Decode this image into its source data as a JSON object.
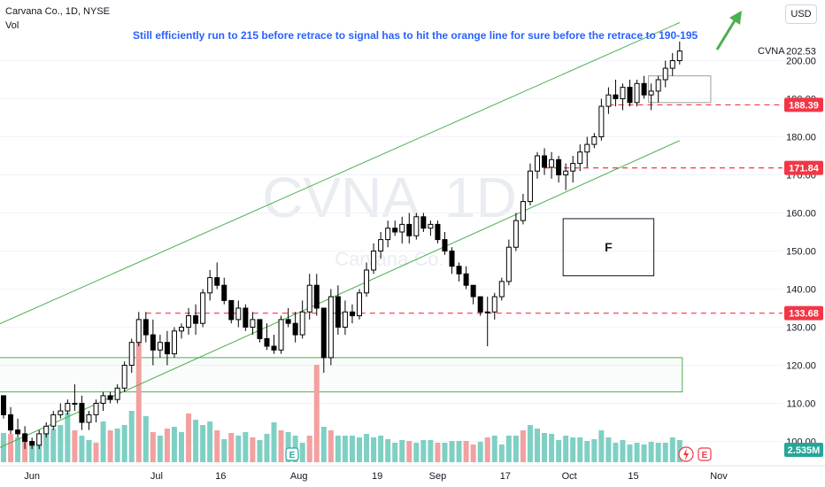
{
  "header": {
    "symbol_line": "Carvana Co., 1D, NYSE",
    "volume_label": "Vol",
    "currency": "USD"
  },
  "annotation": {
    "text": "Still efficiently run to 215 before retrace to signal has to hit the orange line for sure before the retrace to 190-195",
    "box_label": "F",
    "watermark_symbol": "CVNA",
    "watermark_interval": "1D",
    "watermark_name": "Carvana Co."
  },
  "colors": {
    "up": "#ffffff",
    "down": "#000000",
    "vol_up": "#7fd0c4",
    "vol_down": "#f3a0a0",
    "channel": "#4caf50",
    "level": "#f23645",
    "note": "#2962ff"
  },
  "chart_data": {
    "type": "candlestick",
    "y_axis": {
      "min": 95,
      "max": 215,
      "ticks": [
        100,
        110,
        120,
        130,
        140,
        150,
        160,
        170,
        180,
        190,
        200
      ]
    },
    "x_axis_labels": [
      "Jun",
      "Jul",
      "16",
      "Aug",
      "19",
      "Sep",
      "17",
      "Oct",
      "15",
      "Nov"
    ],
    "last_price": {
      "symbol": "CVNA",
      "value": 202.53
    },
    "levels": [
      188.39,
      171.84,
      133.68
    ],
    "volume_badge": "2.535M",
    "axis_event_icons": [
      "E",
      "lightning",
      "E"
    ],
    "candles": [
      [
        112,
        112,
        106,
        107
      ],
      [
        107,
        109,
        102,
        103
      ],
      [
        103,
        106,
        101,
        102
      ],
      [
        102,
        104,
        98,
        100
      ],
      [
        100,
        101,
        98,
        99
      ],
      [
        99,
        103,
        98,
        102
      ],
      [
        102,
        105,
        101,
        104
      ],
      [
        104,
        108,
        103,
        107
      ],
      [
        107,
        110,
        106,
        108
      ],
      [
        108,
        111,
        107,
        110
      ],
      [
        110,
        115,
        108,
        110
      ],
      [
        110,
        112,
        103,
        105
      ],
      [
        105,
        108,
        103,
        107
      ],
      [
        107,
        111,
        105,
        110
      ],
      [
        110,
        113,
        108,
        112
      ],
      [
        112,
        113,
        110,
        111
      ],
      [
        111,
        115,
        110,
        114
      ],
      [
        114,
        121,
        113,
        120
      ],
      [
        120,
        127,
        118,
        126
      ],
      [
        126,
        134,
        125,
        132
      ],
      [
        132,
        134,
        126,
        128
      ],
      [
        128,
        132,
        120,
        124
      ],
      [
        124,
        128,
        122,
        126
      ],
      [
        126,
        129,
        120,
        123
      ],
      [
        123,
        130,
        122,
        129
      ],
      [
        129,
        131,
        127,
        130
      ],
      [
        130,
        135,
        128,
        133
      ],
      [
        133,
        136,
        128,
        131
      ],
      [
        131,
        140,
        130,
        139
      ],
      [
        139,
        145,
        137,
        143
      ],
      [
        143,
        147,
        140,
        141
      ],
      [
        141,
        143,
        136,
        137
      ],
      [
        137,
        137,
        131,
        132
      ],
      [
        132,
        137,
        130,
        135
      ],
      [
        135,
        136,
        129,
        130
      ],
      [
        130,
        134,
        128,
        132
      ],
      [
        132,
        132,
        126,
        127
      ],
      [
        127,
        131,
        124,
        125
      ],
      [
        125,
        128,
        123,
        124
      ],
      [
        124,
        133,
        123,
        132
      ],
      [
        132,
        135,
        130,
        131
      ],
      [
        131,
        134,
        126,
        128
      ],
      [
        128,
        137,
        127,
        134
      ],
      [
        134,
        144,
        132,
        141
      ],
      [
        141,
        144,
        133,
        135
      ],
      [
        135,
        135,
        118,
        122
      ],
      [
        122,
        140,
        120,
        138
      ],
      [
        138,
        141,
        128,
        130
      ],
      [
        130,
        137,
        128,
        134
      ],
      [
        134,
        136,
        131,
        133
      ],
      [
        133,
        140,
        132,
        139
      ],
      [
        139,
        147,
        138,
        145
      ],
      [
        145,
        152,
        144,
        150
      ],
      [
        150,
        155,
        148,
        153
      ],
      [
        153,
        158,
        151,
        156
      ],
      [
        156,
        158,
        154,
        155
      ],
      [
        155,
        159,
        152,
        157
      ],
      [
        157,
        160,
        152,
        154
      ],
      [
        154,
        160,
        153,
        159
      ],
      [
        159,
        160,
        155,
        156
      ],
      [
        156,
        158,
        154,
        157
      ],
      [
        157,
        158,
        152,
        153
      ],
      [
        153,
        155,
        149,
        150
      ],
      [
        150,
        151,
        144,
        146
      ],
      [
        146,
        147,
        142,
        144
      ],
      [
        144,
        146,
        140,
        141
      ],
      [
        141,
        141,
        136,
        138
      ],
      [
        138,
        138,
        133,
        134
      ],
      [
        134,
        138,
        125,
        134
      ],
      [
        134,
        139,
        132,
        138
      ],
      [
        138,
        143,
        137,
        142
      ],
      [
        142,
        153,
        141,
        151
      ],
      [
        151,
        160,
        150,
        158
      ],
      [
        158,
        165,
        157,
        163
      ],
      [
        163,
        173,
        162,
        171
      ],
      [
        171,
        176,
        169,
        175
      ],
      [
        175,
        177,
        170,
        172
      ],
      [
        172,
        176,
        169,
        174
      ],
      [
        174,
        175,
        168,
        170
      ],
      [
        170,
        173,
        166,
        171
      ],
      [
        171,
        175,
        168,
        173
      ],
      [
        173,
        178,
        171,
        176
      ],
      [
        176,
        180,
        172,
        178
      ],
      [
        178,
        181,
        177,
        180
      ],
      [
        180,
        190,
        179,
        188
      ],
      [
        188,
        193,
        186,
        191
      ],
      [
        191,
        195,
        188,
        190
      ],
      [
        190,
        194,
        187,
        193
      ],
      [
        193,
        195,
        188,
        189
      ],
      [
        189,
        195,
        188,
        194
      ],
      [
        194,
        196,
        190,
        191
      ],
      [
        191,
        194,
        187,
        192
      ],
      [
        192,
        196,
        189,
        195
      ],
      [
        195,
        200,
        193,
        198
      ],
      [
        198,
        202,
        196,
        200
      ],
      [
        200,
        205,
        199,
        202.53
      ]
    ],
    "volume": [
      [
        0.33,
        "up"
      ],
      [
        0.32,
        "down"
      ],
      [
        0.28,
        "up"
      ],
      [
        0.31,
        "down"
      ],
      [
        0.2,
        "up"
      ],
      [
        0.22,
        "up"
      ],
      [
        0.33,
        "up"
      ],
      [
        0.38,
        "up"
      ],
      [
        0.42,
        "up"
      ],
      [
        0.56,
        "up"
      ],
      [
        0.36,
        "down"
      ],
      [
        0.3,
        "up"
      ],
      [
        0.25,
        "up"
      ],
      [
        0.22,
        "down"
      ],
      [
        0.46,
        "up"
      ],
      [
        0.36,
        "down"
      ],
      [
        0.38,
        "up"
      ],
      [
        0.42,
        "up"
      ],
      [
        0.58,
        "up"
      ],
      [
        1.35,
        "down"
      ],
      [
        0.52,
        "up"
      ],
      [
        0.34,
        "down"
      ],
      [
        0.3,
        "up"
      ],
      [
        0.38,
        "down"
      ],
      [
        0.4,
        "up"
      ],
      [
        0.34,
        "up"
      ],
      [
        0.55,
        "down"
      ],
      [
        0.48,
        "up"
      ],
      [
        0.42,
        "up"
      ],
      [
        0.46,
        "up"
      ],
      [
        0.36,
        "down"
      ],
      [
        0.26,
        "up"
      ],
      [
        0.33,
        "down"
      ],
      [
        0.3,
        "up"
      ],
      [
        0.34,
        "up"
      ],
      [
        0.28,
        "down"
      ],
      [
        0.25,
        "up"
      ],
      [
        0.32,
        "up"
      ],
      [
        0.45,
        "up"
      ],
      [
        0.36,
        "down"
      ],
      [
        0.34,
        "up"
      ],
      [
        0.3,
        "up"
      ],
      [
        0.22,
        "up"
      ],
      [
        0.3,
        "down"
      ],
      [
        1.1,
        "down"
      ],
      [
        0.4,
        "up"
      ],
      [
        0.36,
        "down"
      ],
      [
        0.3,
        "up"
      ],
      [
        0.3,
        "up"
      ],
      [
        0.3,
        "up"
      ],
      [
        0.28,
        "up"
      ],
      [
        0.32,
        "up"
      ],
      [
        0.28,
        "up"
      ],
      [
        0.3,
        "up"
      ],
      [
        0.26,
        "up"
      ],
      [
        0.22,
        "up"
      ],
      [
        0.25,
        "up"
      ],
      [
        0.24,
        "down"
      ],
      [
        0.22,
        "up"
      ],
      [
        0.25,
        "up"
      ],
      [
        0.25,
        "up"
      ],
      [
        0.22,
        "down"
      ],
      [
        0.22,
        "up"
      ],
      [
        0.24,
        "up"
      ],
      [
        0.24,
        "up"
      ],
      [
        0.24,
        "down"
      ],
      [
        0.2,
        "down"
      ],
      [
        0.23,
        "up"
      ],
      [
        0.28,
        "down"
      ],
      [
        0.3,
        "up"
      ],
      [
        0.2,
        "up"
      ],
      [
        0.3,
        "up"
      ],
      [
        0.3,
        "up"
      ],
      [
        0.36,
        "down"
      ],
      [
        0.42,
        "up"
      ],
      [
        0.38,
        "up"
      ],
      [
        0.33,
        "up"
      ],
      [
        0.32,
        "up"
      ],
      [
        0.25,
        "up"
      ],
      [
        0.3,
        "up"
      ],
      [
        0.28,
        "up"
      ],
      [
        0.28,
        "up"
      ],
      [
        0.24,
        "up"
      ],
      [
        0.26,
        "up"
      ],
      [
        0.36,
        "up"
      ],
      [
        0.28,
        "up"
      ],
      [
        0.22,
        "up"
      ],
      [
        0.25,
        "up"
      ],
      [
        0.2,
        "up"
      ],
      [
        0.22,
        "up"
      ],
      [
        0.2,
        "up"
      ],
      [
        0.23,
        "up"
      ],
      [
        0.22,
        "up"
      ],
      [
        0.22,
        "up"
      ],
      [
        0.28,
        "up"
      ],
      [
        0.25,
        "up"
      ]
    ],
    "channel_upper": [
      [
        -1,
        130.5
      ],
      [
        95,
        210
      ]
    ],
    "channel_lower": [
      [
        -1,
        98
      ],
      [
        95,
        179
      ]
    ],
    "zones": [
      {
        "from_x": -1,
        "to_x": 95,
        "low": 113,
        "high": 122
      },
      {
        "from_x": 79,
        "to_x": 91,
        "low": 143.5,
        "high": 158.5
      },
      {
        "from_x": 91,
        "to_x": 99,
        "low": 189,
        "high": 196
      }
    ]
  }
}
